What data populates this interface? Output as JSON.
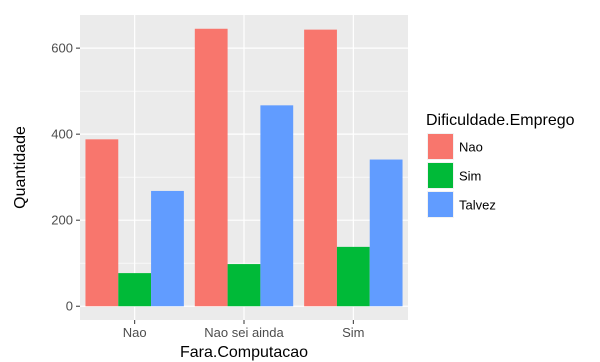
{
  "chart_data": {
    "type": "bar",
    "categories": [
      "Nao",
      "Nao sei ainda",
      "Sim"
    ],
    "series": [
      {
        "name": "Nao",
        "values": [
          388,
          645,
          643
        ],
        "color": "#F8766D"
      },
      {
        "name": "Sim",
        "values": [
          77,
          98,
          138
        ],
        "color": "#00BA38"
      },
      {
        "name": "Talvez",
        "values": [
          268,
          467,
          341
        ],
        "color": "#619CFF"
      }
    ],
    "xlabel": "Fara.Computacao",
    "ylabel": "Quantidade",
    "legend_title": "Dificuldade.Emprego",
    "legend_position": "right",
    "yticks": [
      0,
      200,
      400,
      600
    ],
    "ylim": [
      -32,
      677
    ],
    "grid": true,
    "panel_background": "#EBEBEB"
  }
}
